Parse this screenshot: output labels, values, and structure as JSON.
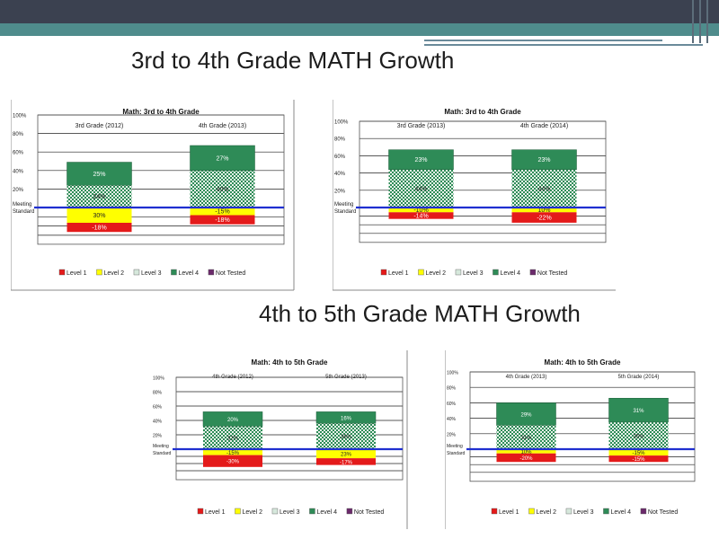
{
  "headings": {
    "top": "3rd to 4th Grade MATH Growth",
    "bottom": "4th to 5th Grade MATH Growth"
  },
  "colors": {
    "level1": "#e41a1a",
    "level2": "#ffff00",
    "level3": "#d6e8dc",
    "level4": "#2e8b57",
    "not_tested": "#6b2a6b",
    "meeting_line": "#1f2fd0"
  },
  "legend": [
    "Level 1",
    "Level 2",
    "Level 3",
    "Level 4",
    "Not Tested"
  ],
  "chart_data": [
    {
      "type": "bar",
      "title": "Math: 3rd to 4th Grade",
      "categories": [
        "3rd Grade (2012)",
        "4th Grade (2013)"
      ],
      "y_ticks": [
        "100%",
        "80%",
        "60%",
        "40%",
        "20%"
      ],
      "meeting_label": [
        "Meeting",
        "Standard"
      ],
      "stacking": "diverging",
      "legend_position": "bottom",
      "series": [
        {
          "name": "Level 4",
          "values": [
            25,
            27
          ],
          "labels": [
            "25%",
            "27%"
          ]
        },
        {
          "name": "Level 3",
          "values": [
            24,
            40
          ],
          "labels": [
            "24%",
            "40%"
          ]
        },
        {
          "name": "Level 2",
          "values": [
            30,
            15
          ],
          "labels": [
            "30%",
            "-15%"
          ]
        },
        {
          "name": "Level 1",
          "values": [
            18,
            18
          ],
          "labels": [
            "-18%",
            "-18%"
          ]
        }
      ]
    },
    {
      "type": "bar",
      "title": "Math: 3rd to 4th Grade",
      "categories": [
        "3rd Grade (2013)",
        "4th Grade (2014)"
      ],
      "y_ticks": [
        "100%",
        "80%",
        "60%",
        "40%",
        "20%"
      ],
      "meeting_label": [
        "Meeting",
        "Standard"
      ],
      "stacking": "diverging",
      "legend_position": "bottom",
      "series": [
        {
          "name": "Level 4",
          "values": [
            23,
            23
          ],
          "labels": [
            "23%",
            "23%"
          ]
        },
        {
          "name": "Level 3",
          "values": [
            44,
            44
          ],
          "labels": [
            "44%",
            "44%"
          ]
        },
        {
          "name": "Level 2",
          "values": [
            10,
            10
          ],
          "labels": [
            "-10%",
            "10%"
          ]
        },
        {
          "name": "Level 1",
          "values": [
            14,
            22
          ],
          "labels": [
            "-14%",
            "-22%"
          ]
        }
      ]
    },
    {
      "type": "bar",
      "title": "Math: 4th to 5th Grade",
      "categories": [
        "4th Grade (2012)",
        "5th Grade (2013)"
      ],
      "y_ticks": [
        "100%",
        "80%",
        "60%",
        "40%",
        "20%"
      ],
      "meeting_label": [
        "Meeting",
        "Standard"
      ],
      "stacking": "diverging",
      "legend_position": "bottom",
      "series": [
        {
          "name": "Level 4",
          "values": [
            20,
            16
          ],
          "labels": [
            "20%",
            "16%"
          ]
        },
        {
          "name": "Level 3",
          "values": [
            32,
            36
          ],
          "labels": [
            "32%",
            "36%"
          ]
        },
        {
          "name": "Level 2",
          "values": [
            15,
            23
          ],
          "labels": [
            "-15%",
            "23%"
          ]
        },
        {
          "name": "Level 1",
          "values": [
            30,
            17
          ],
          "labels": [
            "-30%",
            "-17%"
          ]
        }
      ]
    },
    {
      "type": "bar",
      "title": "Math: 4th to 5th Grade",
      "categories": [
        "4th Grade (2013)",
        "5th Grade (2014)"
      ],
      "y_ticks": [
        "100%",
        "80%",
        "60%",
        "40%",
        "20%"
      ],
      "meeting_label": [
        "Meeting",
        "Standard"
      ],
      "stacking": "diverging",
      "legend_position": "bottom",
      "series": [
        {
          "name": "Level 4",
          "values": [
            29,
            31
          ],
          "labels": [
            "29%",
            "31%"
          ]
        },
        {
          "name": "Level 3",
          "values": [
            31,
            35
          ],
          "labels": [
            "31%",
            "35%"
          ]
        },
        {
          "name": "Level 2",
          "values": [
            10,
            15
          ],
          "labels": [
            "10%",
            "-15%"
          ]
        },
        {
          "name": "Level 1",
          "values": [
            20,
            15
          ],
          "labels": [
            "-20%",
            "-15%"
          ]
        }
      ]
    }
  ]
}
